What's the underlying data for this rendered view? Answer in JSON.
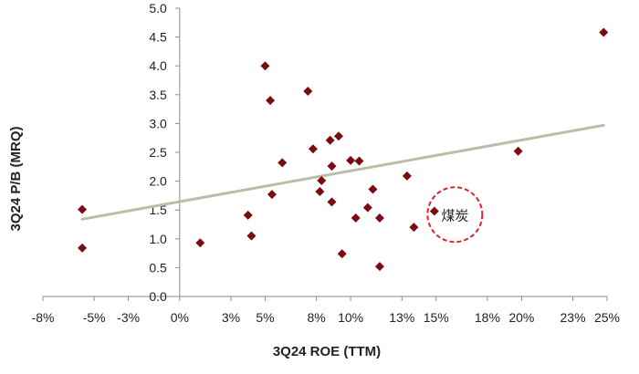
{
  "chart_data": {
    "type": "scatter",
    "xlabel": "3Q24 ROE (TTM)",
    "ylabel": "3Q24 P/B (MRQ)",
    "xlim": [
      -0.08,
      0.25
    ],
    "ylim": [
      0.0,
      5.0
    ],
    "x_ticks": [
      -0.08,
      -0.05,
      -0.03,
      0.0,
      0.03,
      0.05,
      0.08,
      0.1,
      0.13,
      0.15,
      0.18,
      0.2,
      0.23,
      0.25
    ],
    "x_tick_labels": [
      "-8%",
      "-5%",
      "-3%",
      "0%",
      "3%",
      "5%",
      "8%",
      "10%",
      "13%",
      "15%",
      "18%",
      "20%",
      "23%",
      "25%"
    ],
    "y_ticks": [
      0.0,
      0.5,
      1.0,
      1.5,
      2.0,
      2.5,
      3.0,
      3.5,
      4.0,
      4.5,
      5.0
    ],
    "y_tick_labels": [
      "0.0",
      "0.5",
      "1.0",
      "1.5",
      "2.0",
      "2.5",
      "3.0",
      "3.5",
      "4.0",
      "4.5",
      "5.0"
    ],
    "grid": false,
    "marker_color": "#7b0c12",
    "trendline_color": "#b7bfa9",
    "annotation_color": "#e0202a",
    "points": [
      {
        "x": -0.057,
        "y": 1.51
      },
      {
        "x": -0.057,
        "y": 0.84
      },
      {
        "x": 0.012,
        "y": 0.93
      },
      {
        "x": 0.04,
        "y": 1.41
      },
      {
        "x": 0.042,
        "y": 1.05
      },
      {
        "x": 0.05,
        "y": 4.0
      },
      {
        "x": 0.053,
        "y": 3.4
      },
      {
        "x": 0.054,
        "y": 1.77
      },
      {
        "x": 0.06,
        "y": 2.32
      },
      {
        "x": 0.075,
        "y": 3.56
      },
      {
        "x": 0.078,
        "y": 2.56
      },
      {
        "x": 0.082,
        "y": 1.82
      },
      {
        "x": 0.083,
        "y": 2.01
      },
      {
        "x": 0.088,
        "y": 2.71
      },
      {
        "x": 0.089,
        "y": 2.26
      },
      {
        "x": 0.089,
        "y": 1.64
      },
      {
        "x": 0.093,
        "y": 2.78
      },
      {
        "x": 0.095,
        "y": 0.74
      },
      {
        "x": 0.1,
        "y": 2.36
      },
      {
        "x": 0.103,
        "y": 1.36
      },
      {
        "x": 0.105,
        "y": 2.35
      },
      {
        "x": 0.11,
        "y": 1.54
      },
      {
        "x": 0.113,
        "y": 1.86
      },
      {
        "x": 0.117,
        "y": 1.36
      },
      {
        "x": 0.117,
        "y": 0.52
      },
      {
        "x": 0.133,
        "y": 2.09
      },
      {
        "x": 0.137,
        "y": 1.2
      },
      {
        "x": 0.149,
        "y": 1.48
      },
      {
        "x": 0.198,
        "y": 2.52
      },
      {
        "x": 0.248,
        "y": 4.58
      }
    ],
    "trendline": {
      "x": [
        -0.057,
        0.248
      ],
      "y": [
        1.34,
        2.97
      ]
    },
    "annotations": [
      {
        "text": "煤炭",
        "x": 0.161,
        "y": 1.42
      }
    ]
  }
}
